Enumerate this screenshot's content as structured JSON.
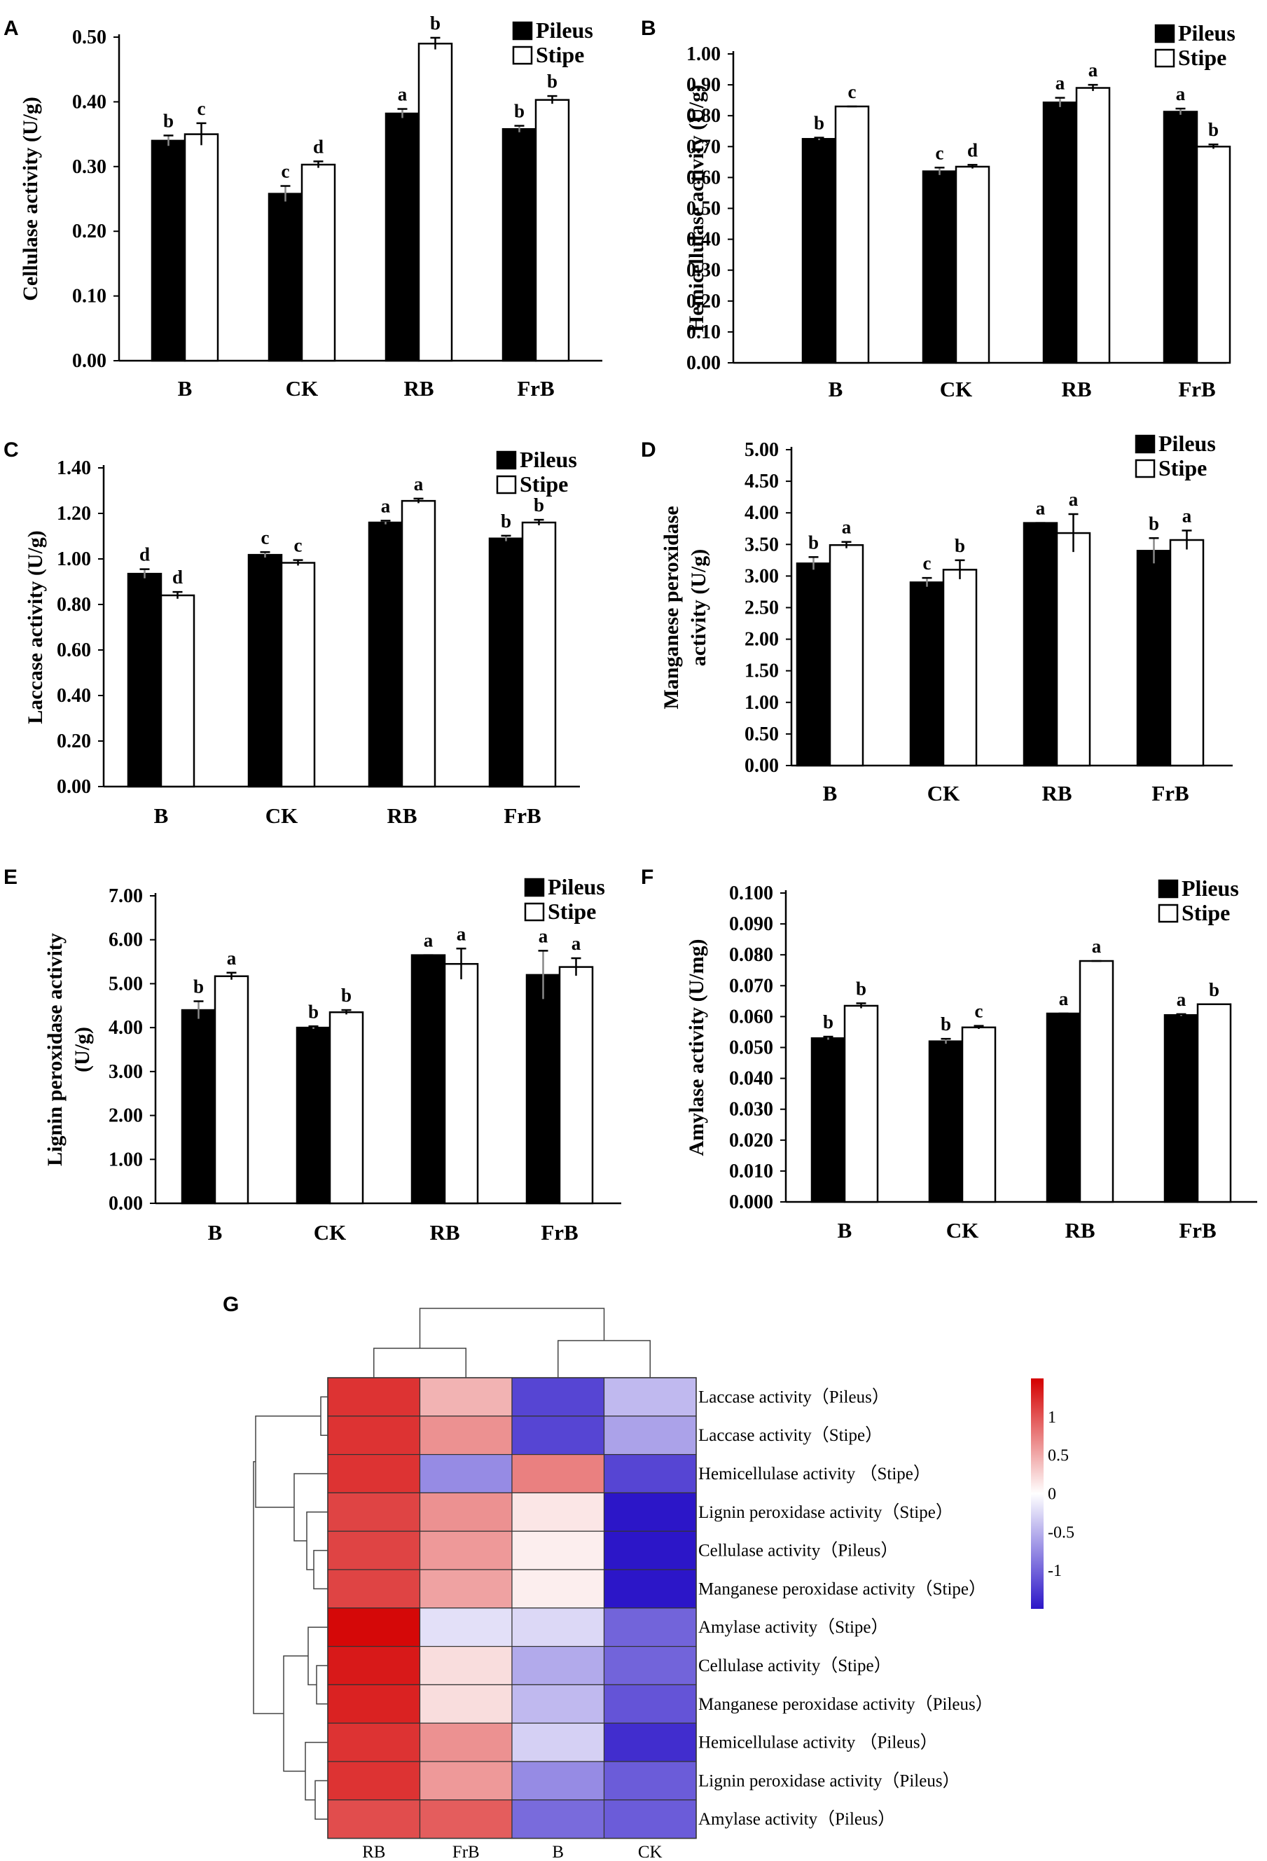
{
  "colors": {
    "pileus": "#000000",
    "stipe": "#ffffff",
    "low": "#2c16c8",
    "mid": "#ffffff",
    "high": "#d40000"
  },
  "chart_data": [
    {
      "panel": "A",
      "type": "bar",
      "ylabel": "Cellulase activity (U/g)",
      "categories": [
        "B",
        "CK",
        "RB",
        "FrB"
      ],
      "ylim": [
        0,
        0.5
      ],
      "yticks": [
        "0.00",
        "0.10",
        "0.20",
        "0.30",
        "0.40",
        "0.50"
      ],
      "legend": [
        "Pileus",
        "Stipe"
      ],
      "series": [
        {
          "name": "Pileus",
          "values": [
            0.34,
            0.258,
            0.382,
            0.358
          ],
          "errors": [
            0.008,
            0.012,
            0.007,
            0.005
          ],
          "letters": [
            "b",
            "c",
            "a",
            "b"
          ]
        },
        {
          "name": "Stipe",
          "values": [
            0.35,
            0.303,
            0.49,
            0.403
          ],
          "errors": [
            0.017,
            0.005,
            0.009,
            0.006
          ],
          "letters": [
            "c",
            "d",
            "b",
            "b"
          ]
        }
      ]
    },
    {
      "panel": "B",
      "type": "bar",
      "ylabel": "Hemicellulase activity (U/g)",
      "categories": [
        "B",
        "CK",
        "RB",
        "FrB"
      ],
      "ylim": [
        0,
        1.0
      ],
      "yticks": [
        "0.00",
        "0.10",
        "0.20",
        "0.30",
        "0.40",
        "0.50",
        "0.60",
        "0.70",
        "0.80",
        "0.90",
        "1.00"
      ],
      "legend": [
        "Pileus",
        "Stipe"
      ],
      "series": [
        {
          "name": "Pileus",
          "values": [
            0.725,
            0.62,
            0.843,
            0.813
          ],
          "errors": [
            0.004,
            0.012,
            0.015,
            0.01
          ],
          "letters": [
            "b",
            "c",
            "a",
            "a"
          ]
        },
        {
          "name": "Stipe",
          "values": [
            0.83,
            0.635,
            0.89,
            0.7
          ],
          "errors": [
            0.0,
            0.006,
            0.01,
            0.007
          ],
          "letters": [
            "c",
            "d",
            "a",
            "b"
          ]
        }
      ]
    },
    {
      "panel": "C",
      "type": "bar",
      "ylabel": "Laccase activity (U/g)",
      "categories": [
        "B",
        "CK",
        "RB",
        "FrB"
      ],
      "ylim": [
        0,
        1.4
      ],
      "yticks": [
        "0.00",
        "0.20",
        "0.40",
        "0.60",
        "0.80",
        "1.00",
        "1.20",
        "1.40"
      ],
      "legend": [
        "Pileus",
        "Stipe"
      ],
      "series": [
        {
          "name": "Pileus",
          "values": [
            0.935,
            1.018,
            1.16,
            1.09
          ],
          "errors": [
            0.02,
            0.012,
            0.008,
            0.012
          ],
          "letters": [
            "d",
            "c",
            "a",
            "b"
          ]
        },
        {
          "name": "Stipe",
          "values": [
            0.84,
            0.983,
            1.255,
            1.16
          ],
          "errors": [
            0.015,
            0.012,
            0.01,
            0.012
          ],
          "letters": [
            "d",
            "c",
            "a",
            "b"
          ]
        }
      ]
    },
    {
      "panel": "D",
      "type": "bar",
      "ylabel": "Manganese peroxidase activity (U/g)",
      "ylabel_lines": [
        "Manganese peroxidase",
        "activity (U/g)"
      ],
      "categories": [
        "B",
        "CK",
        "RB",
        "FrB"
      ],
      "ylim": [
        0,
        5.0
      ],
      "yticks": [
        "0.00",
        "0.50",
        "1.00",
        "1.50",
        "2.00",
        "2.50",
        "3.00",
        "3.50",
        "4.00",
        "4.50",
        "5.00"
      ],
      "legend": [
        "Pileus",
        "Stipe"
      ],
      "series": [
        {
          "name": "Pileus",
          "values": [
            3.2,
            2.9,
            3.84,
            3.4
          ],
          "errors": [
            0.1,
            0.07,
            0.0,
            0.2
          ],
          "letters": [
            "b",
            "c",
            "a",
            "b"
          ]
        },
        {
          "name": "Stipe",
          "values": [
            3.49,
            3.1,
            3.68,
            3.57
          ],
          "errors": [
            0.05,
            0.15,
            0.3,
            0.15
          ],
          "letters": [
            "a",
            "b",
            "a",
            "a"
          ]
        }
      ]
    },
    {
      "panel": "E",
      "type": "bar",
      "ylabel": "Lignin peroxidase activity (U/g)",
      "ylabel_lines": [
        "Lignin peroxidase activity",
        "(U/g)"
      ],
      "categories": [
        "B",
        "CK",
        "RB",
        "FrB"
      ],
      "ylim": [
        0,
        7.0
      ],
      "yticks": [
        "0.00",
        "1.00",
        "2.00",
        "3.00",
        "4.00",
        "5.00",
        "6.00",
        "7.00"
      ],
      "legend": [
        "Pileus",
        "Stipe"
      ],
      "series": [
        {
          "name": "Pileus",
          "values": [
            4.4,
            4.0,
            5.65,
            5.2
          ],
          "errors": [
            0.2,
            0.03,
            0.0,
            0.55
          ],
          "letters": [
            "b",
            "b",
            "a",
            "a"
          ]
        },
        {
          "name": "Stipe",
          "values": [
            5.17,
            4.35,
            5.45,
            5.38
          ],
          "errors": [
            0.08,
            0.05,
            0.35,
            0.2
          ],
          "letters": [
            "a",
            "b",
            "a",
            "a"
          ]
        }
      ]
    },
    {
      "panel": "F",
      "type": "bar",
      "ylabel": "Amylase activity (U/mg)",
      "categories": [
        "B",
        "CK",
        "RB",
        "FrB"
      ],
      "ylim": [
        0,
        0.1
      ],
      "yticks": [
        "0.000",
        "0.010",
        "0.020",
        "0.030",
        "0.040",
        "0.050",
        "0.060",
        "0.070",
        "0.080",
        "0.090",
        "0.100"
      ],
      "legend": [
        "Plieus",
        "Stipe"
      ],
      "series": [
        {
          "name": "Pileus",
          "values": [
            0.053,
            0.052,
            0.061,
            0.0605
          ],
          "errors": [
            0.0005,
            0.0008,
            0.0,
            0.0003
          ],
          "letters": [
            "b",
            "b",
            "a",
            "a"
          ]
        },
        {
          "name": "Stipe",
          "values": [
            0.0635,
            0.0565,
            0.078,
            0.064
          ],
          "errors": [
            0.0008,
            0.0005,
            0.0,
            0.0
          ],
          "letters": [
            "b",
            "c",
            "a",
            "b"
          ]
        }
      ]
    },
    {
      "panel": "G",
      "type": "heatmap",
      "columns": [
        "RB",
        "FrB",
        "B",
        "CK"
      ],
      "rows": [
        "Laccase activity（Pileus）",
        "Laccase activity（Stipe）",
        "Hemicellulase activity （Stipe）",
        "Lignin peroxidase activity（Stipe）",
        "Cellulase activity（Pileus）",
        "Manganese peroxidase activity（Stipe）",
        "Amylase activity（Stipe）",
        "Cellulase activity（Stipe）",
        "Manganese peroxidase activity（Pileus）",
        "Hemicellulase activity （Pileus）",
        "Lignin peroxidase activity（Pileus）",
        "Amylase activity（Pileus）"
      ],
      "values": [
        [
          1.2,
          0.45,
          -1.2,
          -0.45
        ],
        [
          1.2,
          0.65,
          -1.2,
          -0.6
        ],
        [
          1.2,
          -0.75,
          0.75,
          -1.2
        ],
        [
          1.1,
          0.65,
          0.15,
          -1.5
        ],
        [
          1.1,
          0.6,
          0.1,
          -1.5
        ],
        [
          1.1,
          0.55,
          0.1,
          -1.5
        ],
        [
          1.45,
          -0.2,
          -0.25,
          -1.0
        ],
        [
          1.35,
          0.2,
          -0.55,
          -1.0
        ],
        [
          1.3,
          0.2,
          -0.45,
          -1.1
        ],
        [
          1.2,
          0.65,
          -0.3,
          -1.35
        ],
        [
          1.2,
          0.6,
          -0.75,
          -1.05
        ],
        [
          1.05,
          0.95,
          -0.95,
          -1.05
        ]
      ],
      "color_scale": {
        "min": -1.5,
        "max": 1.5,
        "ticks": [
          "1",
          "0.5",
          "0",
          "-0.5",
          "-1"
        ]
      }
    }
  ]
}
